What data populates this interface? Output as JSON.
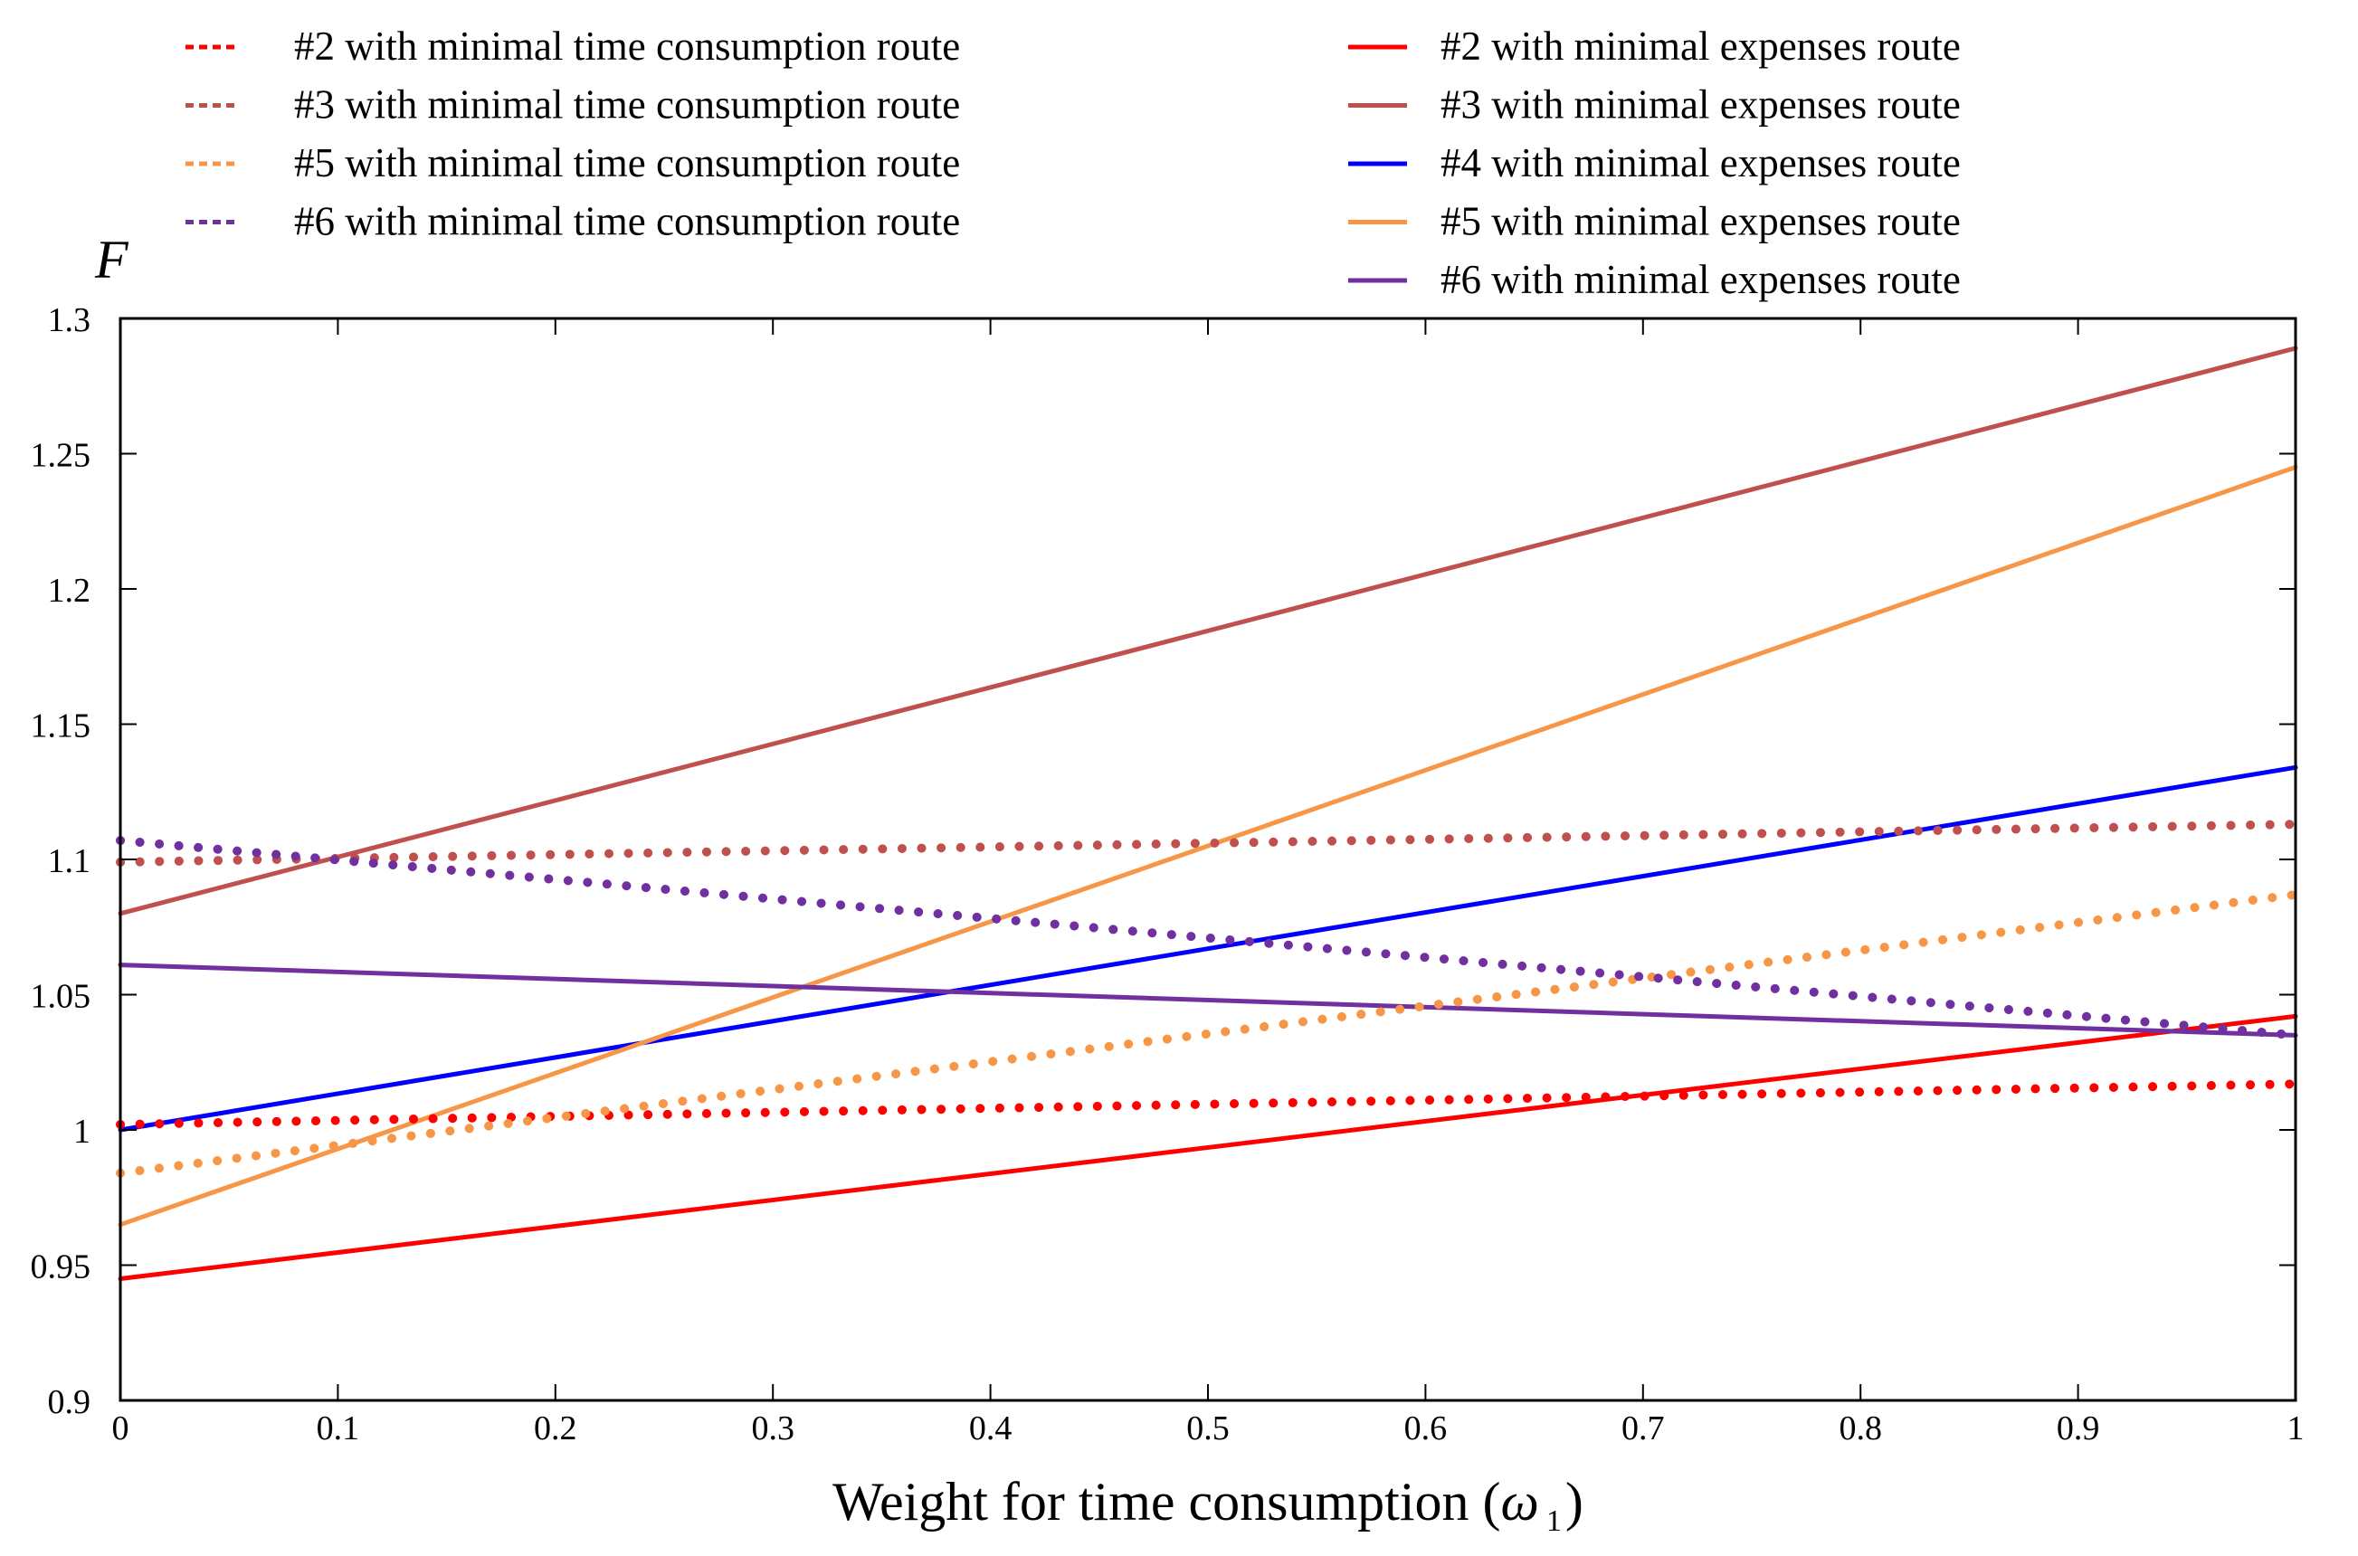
{
  "chart_data": {
    "type": "line",
    "title": "",
    "xlabel": "Weight for time consumption (",
    "xlabel_symbol": "ω",
    "xlabel_subscript": "1",
    "xlabel_close": ")",
    "ylabel": "F",
    "xlim": [
      0,
      1
    ],
    "ylim": [
      0.9,
      1.3
    ],
    "x_ticks": [
      0,
      0.1,
      0.2,
      0.3,
      0.4,
      0.5,
      0.6,
      0.7,
      0.8,
      0.9,
      1
    ],
    "x_tick_labels": [
      "0",
      "0.1",
      "0.2",
      "0.3",
      "0.4",
      "0.5",
      "0.6",
      "0.7",
      "0.8",
      "0.9",
      "1"
    ],
    "y_ticks": [
      0.9,
      0.95,
      1.0,
      1.05,
      1.1,
      1.15,
      1.2,
      1.25,
      1.3
    ],
    "y_tick_labels": [
      "0.9",
      "0.95",
      "1",
      "1.05",
      "1.1",
      "1.15",
      "1.2",
      "1.25",
      "1.3"
    ],
    "grid": false,
    "legend_position": "top",
    "series": [
      {
        "name": "#2 with minimal time consumption route",
        "style": "dotted",
        "color": "#ff0000",
        "x": [
          0,
          1
        ],
        "y": [
          1.002,
          1.017
        ]
      },
      {
        "name": "#3 with minimal time consumption route",
        "style": "dotted",
        "color": "#c0504d",
        "x": [
          0,
          1
        ],
        "y": [
          1.099,
          1.113
        ]
      },
      {
        "name": "#5 with minimal time consumption route",
        "style": "dotted",
        "color": "#f79646",
        "x": [
          0,
          1
        ],
        "y": [
          0.984,
          1.087
        ]
      },
      {
        "name": "#6 with minimal time consumption route",
        "style": "dotted",
        "color": "#7030a0",
        "x": [
          0,
          1
        ],
        "y": [
          1.107,
          1.035
        ]
      },
      {
        "name": "#2 with minimal expenses route",
        "style": "solid",
        "color": "#ff0000",
        "x": [
          0,
          1
        ],
        "y": [
          0.945,
          1.042
        ]
      },
      {
        "name": "#3 with minimal expenses route",
        "style": "solid",
        "color": "#c0504d",
        "x": [
          0,
          1
        ],
        "y": [
          1.08,
          1.289
        ]
      },
      {
        "name": "#4 with minimal expenses route",
        "style": "solid",
        "color": "#0000ff",
        "x": [
          0,
          1
        ],
        "y": [
          1.0,
          1.134
        ]
      },
      {
        "name": "#5 with minimal expenses route",
        "style": "solid",
        "color": "#f79646",
        "x": [
          0,
          1
        ],
        "y": [
          0.965,
          1.245
        ]
      },
      {
        "name": "#6 with minimal expenses route",
        "style": "solid",
        "color": "#7030a0",
        "x": [
          0,
          1
        ],
        "y": [
          1.061,
          1.035
        ]
      }
    ]
  }
}
